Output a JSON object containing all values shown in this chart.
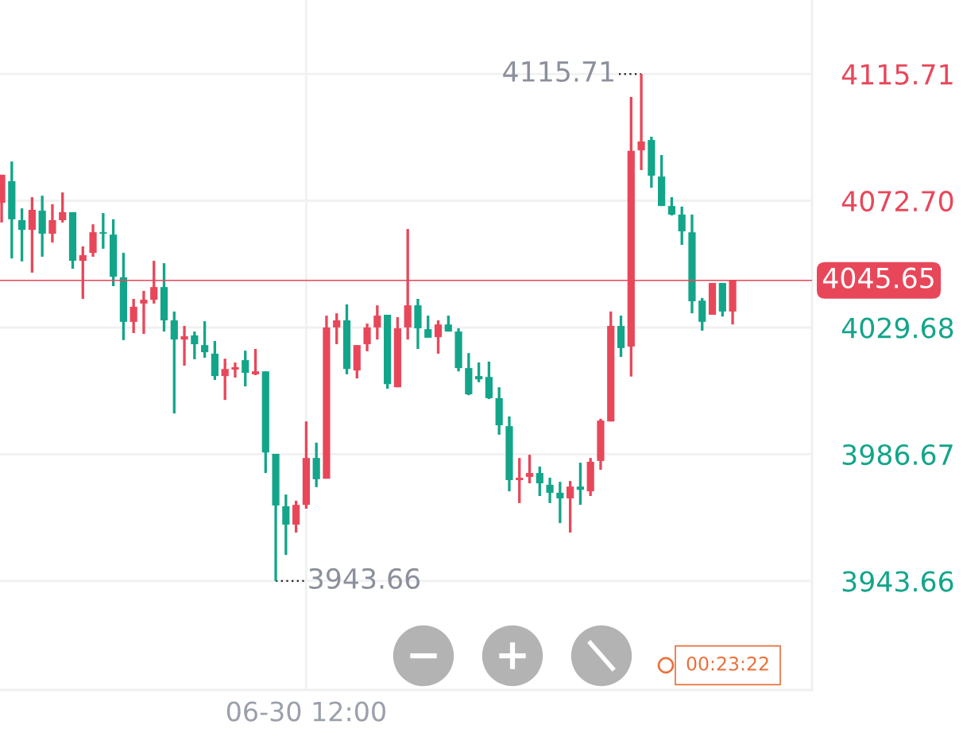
{
  "chart_data": {
    "type": "candlestick",
    "categories": [
      null,
      null,
      null,
      null,
      null,
      null,
      null,
      null,
      null,
      null,
      null,
      null,
      null,
      null,
      null,
      null,
      null,
      null,
      null,
      null,
      null,
      null,
      null,
      null,
      null,
      null,
      null,
      null,
      null,
      null,
      "06-30 12:00",
      null,
      null,
      null,
      null,
      null,
      null,
      null,
      null,
      null,
      null,
      null,
      null,
      null,
      null,
      null,
      null,
      null,
      null,
      null,
      null,
      null,
      null,
      null,
      null,
      null,
      null,
      null,
      null,
      null,
      null,
      null,
      null,
      null,
      null,
      null,
      null,
      null,
      null,
      null,
      null,
      null,
      null
    ],
    "ohlc": [
      [
        4072.0,
        4081.5,
        4065.3,
        4081.5
      ],
      [
        4079.3,
        4086.0,
        4053.1,
        4066.4
      ],
      [
        4066.1,
        4070.1,
        4052.1,
        4062.8
      ],
      [
        4062.8,
        4073.9,
        4048.3,
        4069.6
      ],
      [
        4069.3,
        4074.4,
        4053.7,
        4061.5
      ],
      [
        4061.5,
        4071.5,
        4058.5,
        4066.1
      ],
      [
        4066.1,
        4075.5,
        4065.3,
        4068.8
      ],
      [
        4068.8,
        4068.8,
        4049.6,
        4052.3
      ],
      [
        4052.3,
        4057.2,
        4039.4,
        4054.2
      ],
      [
        4055.0,
        4064.7,
        4053.7,
        4062.0
      ],
      [
        4062.0,
        4068.5,
        4056.4,
        4061.5
      ],
      [
        4061.2,
        4066.4,
        4043.7,
        4046.9
      ],
      [
        4046.7,
        4055.0,
        4025.4,
        4031.6
      ],
      [
        4031.6,
        4039.4,
        4027.8,
        4036.7
      ],
      [
        4037.8,
        4042.1,
        4027.5,
        4039.1
      ],
      [
        4039.1,
        4052.3,
        4037.8,
        4043.4
      ],
      [
        4043.4,
        4051.5,
        4028.3,
        4032.1
      ],
      [
        4032.1,
        4035.1,
        4000.5,
        4025.6
      ],
      [
        4025.6,
        4030.2,
        4016.7,
        4026.7
      ],
      [
        4027.0,
        4028.3,
        4018.9,
        4024.0
      ],
      [
        4023.7,
        4031.8,
        4019.4,
        4021.3
      ],
      [
        4020.8,
        4025.1,
        4011.9,
        4013.2
      ],
      [
        4013.2,
        4019.1,
        4005.1,
        4015.6
      ],
      [
        4015.4,
        4017.8,
        4012.7,
        4016.2
      ],
      [
        4018.6,
        4021.8,
        4009.7,
        4014.3
      ],
      [
        4013.8,
        4022.4,
        4013.5,
        4014.8
      ],
      [
        4014.8,
        4014.8,
        3980.3,
        3987.3
      ],
      [
        3986.8,
        3986.8,
        3943.66,
        3969.3
      ],
      [
        3969.0,
        3973.0,
        3952.5,
        3962.8
      ],
      [
        3962.8,
        3970.9,
        3960.1,
        3969.5
      ],
      [
        3969.5,
        3997.8,
        3968.2,
        3985.4
      ],
      [
        3985.4,
        3990.6,
        3975.5,
        3978.2
      ],
      [
        3978.4,
        4033.7,
        3978.4,
        4029.7
      ],
      [
        4029.7,
        4034.5,
        4024.0,
        4032.1
      ],
      [
        4032.1,
        4037.5,
        4013.8,
        4015.6
      ],
      [
        4015.1,
        4023.7,
        4012.4,
        4023.7
      ],
      [
        4024.0,
        4031.0,
        4021.6,
        4029.7
      ],
      [
        4029.7,
        4037.2,
        4025.6,
        4033.7
      ],
      [
        4034.0,
        4034.0,
        4008.9,
        4010.5
      ],
      [
        4009.4,
        4033.2,
        4009.4,
        4029.4
      ],
      [
        4029.7,
        4063.1,
        4025.6,
        4037.2
      ],
      [
        4037.2,
        4039.4,
        4022.4,
        4029.4
      ],
      [
        4029.1,
        4033.7,
        4026.2,
        4026.2
      ],
      [
        4026.4,
        4032.1,
        4020.8,
        4030.7
      ],
      [
        4030.7,
        4033.7,
        4028.3,
        4028.3
      ],
      [
        4028.3,
        4029.4,
        4014.8,
        4015.9
      ],
      [
        4015.9,
        4021.0,
        4006.7,
        4007.0
      ],
      [
        4013.2,
        4017.8,
        4011.1,
        4012.1
      ],
      [
        4012.9,
        4018.1,
        4005.4,
        4005.7
      ],
      [
        4005.7,
        4009.4,
        3993.3,
        3996.5
      ],
      [
        3996.2,
        3999.5,
        3974.1,
        3977.9
      ],
      [
        3977.9,
        3985.4,
        3970.1,
        3978.7
      ],
      [
        3979.0,
        3986.5,
        3976.8,
        3980.3
      ],
      [
        3980.3,
        3982.5,
        3972.5,
        3976.8
      ],
      [
        3976.3,
        3978.7,
        3970.1,
        3973.6
      ],
      [
        3973.6,
        3977.3,
        3963.3,
        3971.7
      ],
      [
        3971.7,
        3977.6,
        3960.1,
        3975.7
      ],
      [
        3975.7,
        3983.8,
        3969.5,
        3974.6
      ],
      [
        3974.1,
        3985.4,
        3972.5,
        3984.1
      ],
      [
        3984.4,
        3998.7,
        3981.4,
        3998.1
      ],
      [
        3997.8,
        4035.1,
        3997.8,
        4030.2
      ],
      [
        4030.2,
        4033.7,
        4019.7,
        4022.7
      ],
      [
        4023.2,
        4107.9,
        4013.0,
        4089.6
      ],
      [
        4089.8,
        4115.71,
        4083.1,
        4092.8
      ],
      [
        4093.3,
        4094.4,
        4077.1,
        4081.2
      ],
      [
        4080.9,
        4088.2,
        4070.9,
        4070.9
      ],
      [
        4070.9,
        4073.9,
        4067.7,
        4068.0
      ],
      [
        4068.0,
        4070.7,
        4057.7,
        4062.3
      ],
      [
        4062.0,
        4068.0,
        4034.5,
        4038.6
      ],
      [
        4038.8,
        4039.7,
        4028.6,
        4031.6
      ],
      [
        4034.0,
        4044.8,
        4034.0,
        4044.8
      ],
      [
        4044.8,
        4044.8,
        4033.4,
        4035.1
      ],
      [
        4035.1,
        4045.65,
        4030.7,
        4045.65
      ]
    ],
    "colors": [
      "#e8475a",
      "#13a58a",
      "#13a58a",
      "#e8475a",
      "#13a58a",
      "#e8475a",
      "#e8475a",
      "#13a58a",
      "#e8475a",
      "#e8475a",
      "#13a58a",
      "#13a58a",
      "#13a58a",
      "#e8475a",
      "#e8475a",
      "#e8475a",
      "#13a58a",
      "#13a58a",
      "#e8475a",
      "#13a58a",
      "#13a58a",
      "#13a58a",
      "#e8475a",
      "#e8475a",
      "#13a58a",
      "#e8475a",
      "#13a58a",
      "#13a58a",
      "#13a58a",
      "#e8475a",
      "#e8475a",
      "#13a58a",
      "#e8475a",
      "#e8475a",
      "#13a58a",
      "#e8475a",
      "#e8475a",
      "#e8475a",
      "#13a58a",
      "#e8475a",
      "#e8475a",
      "#13a58a",
      "#13a58a",
      "#e8475a",
      "#13a58a",
      "#13a58a",
      "#13a58a",
      "#13a58a",
      "#13a58a",
      "#13a58a",
      "#13a58a",
      "#e8475a",
      "#e8475a",
      "#13a58a",
      "#13a58a",
      "#13a58a",
      "#e8475a",
      "#13a58a",
      "#e8475a",
      "#e8475a",
      "#e8475a",
      "#13a58a",
      "#e8475a",
      "#e8475a",
      "#13a58a",
      "#13a58a",
      "#13a58a",
      "#13a58a",
      "#13a58a",
      "#13a58a",
      "#e8475a",
      "#13a58a",
      "#e8475a"
    ],
    "ylim": [
      3906.7,
      4140.8
    ],
    "yticks": [
      {
        "value": 3943.66,
        "label": "3943.66"
      },
      {
        "value": 3986.67,
        "label": "3986.67"
      },
      {
        "value": 4029.68,
        "label": "4029.68"
      },
      {
        "value": 4072.7,
        "label": "4072.70"
      },
      {
        "value": 4115.71,
        "label": "4115.71"
      }
    ],
    "ref_lines": [
      {
        "axis": "y",
        "value": 4045.65,
        "label": "4045.65",
        "color": "#e8475a"
      }
    ],
    "annotations": [
      "4115.71",
      "3943.66",
      "00:23:22"
    ],
    "grid": true
  }
}
